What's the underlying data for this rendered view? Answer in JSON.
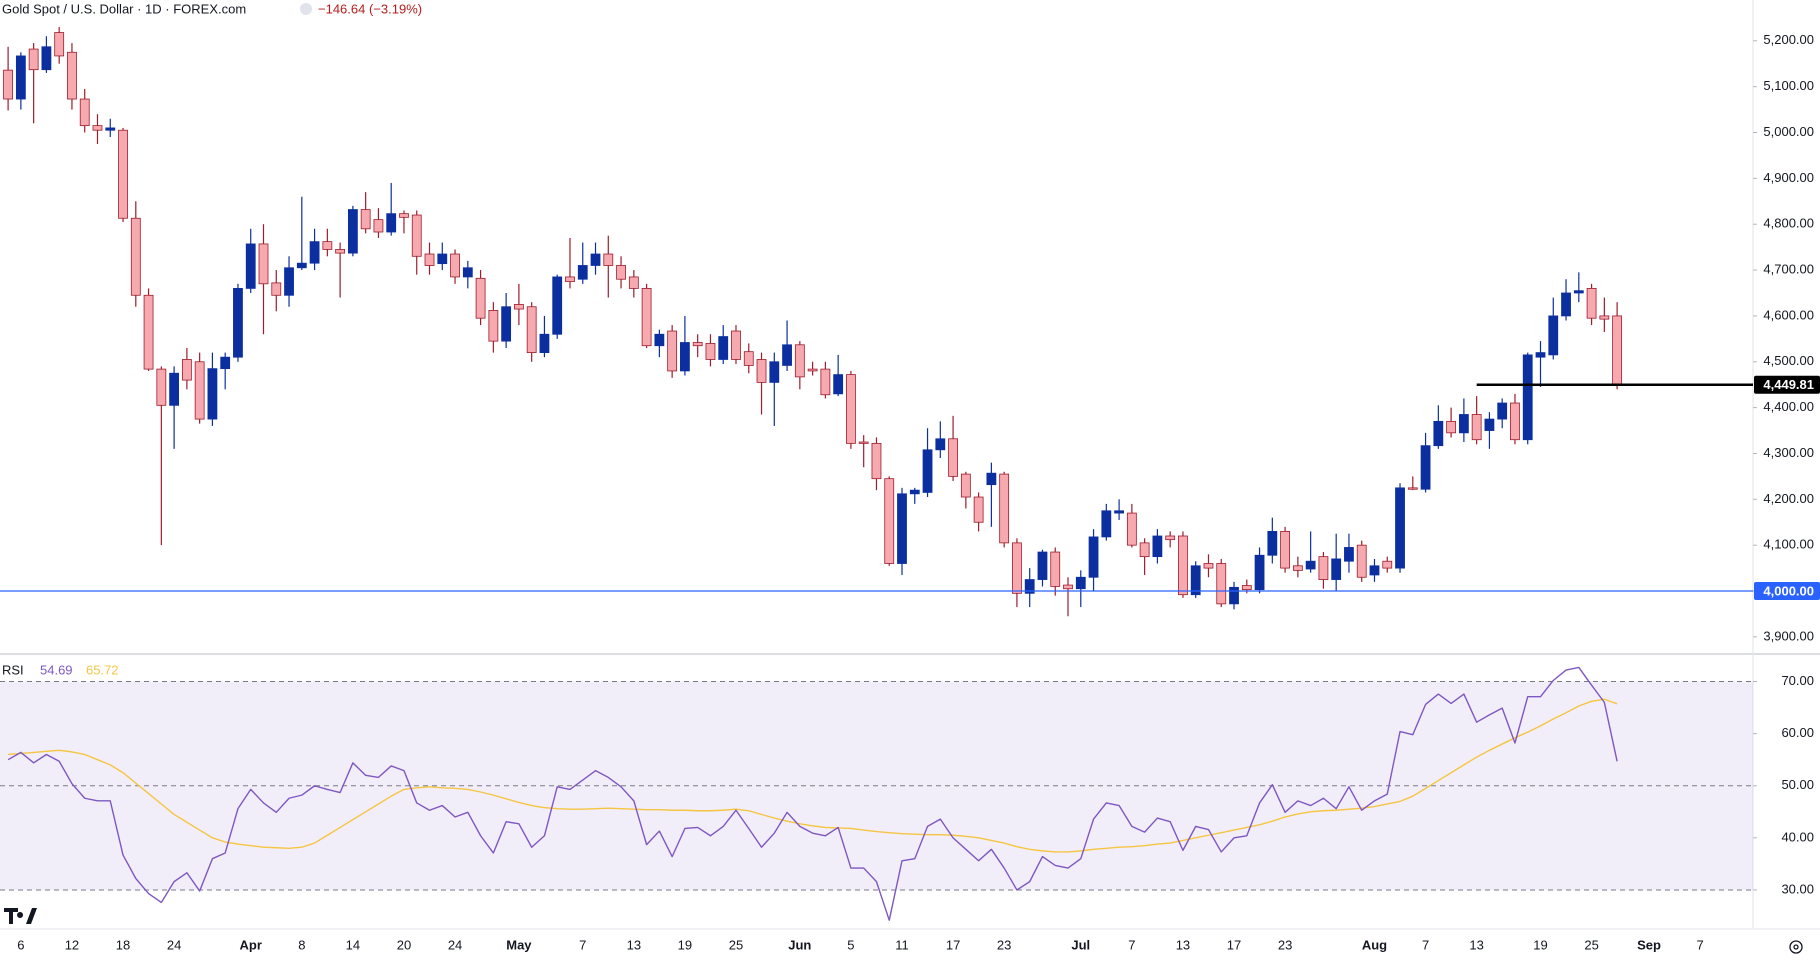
{
  "header": {
    "symbol": "Gold Spot / U.S. Dollar · 1D · FOREX.com",
    "change": "−146.64 (−3.19%)"
  },
  "chart_data": [
    {
      "type": "candlestick",
      "categories": [
        null,
        "6",
        null,
        null,
        null,
        "12",
        null,
        null,
        null,
        "18",
        null,
        null,
        null,
        "24",
        null,
        null,
        null,
        null,
        null,
        "Apr",
        null,
        null,
        null,
        "8",
        null,
        null,
        null,
        "14",
        null,
        null,
        null,
        "20",
        null,
        null,
        null,
        "24",
        null,
        null,
        null,
        null,
        "May",
        null,
        null,
        null,
        null,
        "7",
        null,
        null,
        null,
        "13",
        null,
        null,
        null,
        "19",
        null,
        null,
        null,
        "25",
        null,
        null,
        null,
        null,
        "Jun",
        null,
        null,
        null,
        "5",
        null,
        null,
        null,
        "11",
        null,
        null,
        null,
        "17",
        null,
        null,
        null,
        "23",
        null,
        null,
        null,
        null,
        null,
        "Jul",
        null,
        null,
        null,
        "7",
        null,
        null,
        null,
        "13",
        null,
        null,
        null,
        "17",
        null,
        null,
        null,
        "23",
        null,
        null,
        null,
        null,
        null,
        null,
        "Aug",
        null,
        null,
        null,
        "7",
        null,
        null,
        null,
        "13",
        null,
        null,
        null,
        null,
        "19",
        null,
        null,
        null,
        "25",
        null,
        null
      ],
      "future_categories": [
        "Sep",
        "7"
      ],
      "open": [
        5136,
        5073,
        5182,
        5137,
        5218,
        5175,
        5073,
        5015,
        5005,
        5005,
        4813,
        4645,
        4484,
        4405,
        4505,
        4500,
        4375,
        4485,
        4510,
        4660,
        4757,
        4672,
        4645,
        4705,
        4715,
        4762,
        4745,
        4737,
        4832,
        4810,
        4783,
        4823,
        4820,
        4735,
        4714,
        4735,
        4685,
        4682,
        4612,
        4545,
        4625,
        4620,
        4520,
        4560,
        4685,
        4680,
        4710,
        4735,
        4710,
        4685,
        4660,
        4535,
        4567,
        4480,
        4542,
        4540,
        4505,
        4567,
        4522,
        4505,
        4455,
        4492,
        4537,
        4484,
        4484,
        4430,
        4472,
        4325,
        4322,
        4245,
        4060,
        4212,
        4215,
        4308,
        4332,
        4255,
        4205,
        4232,
        4255,
        4105,
        3995,
        4025,
        4085,
        4013,
        4005,
        4030,
        4118,
        4170,
        4170,
        4105,
        4075,
        4120,
        4120,
        3992,
        4060,
        4060,
        3972,
        4012,
        4003,
        4078,
        4130,
        4055,
        4048,
        4075,
        4025,
        4065,
        4100,
        4035,
        4065,
        4050,
        4225,
        4222,
        4317,
        4370,
        4345,
        4385,
        4350,
        4375,
        4410,
        4330,
        4510,
        4515,
        4600,
        4650,
        4660,
        4600,
        4600
      ],
      "high": [
        5187,
        5175,
        5195,
        5210,
        5230,
        5195,
        5095,
        5040,
        5030,
        5010,
        4850,
        4660,
        4490,
        4490,
        4530,
        4520,
        4520,
        4520,
        4670,
        4790,
        4800,
        4700,
        4730,
        4860,
        4790,
        4790,
        4760,
        4840,
        4870,
        4835,
        4890,
        4830,
        4830,
        4760,
        4760,
        4745,
        4720,
        4700,
        4630,
        4650,
        4670,
        4630,
        4600,
        4690,
        4770,
        4760,
        4760,
        4775,
        4730,
        4700,
        4670,
        4570,
        4580,
        4600,
        4560,
        4560,
        4580,
        4580,
        4540,
        4520,
        4520,
        4590,
        4545,
        4500,
        4500,
        4515,
        4480,
        4340,
        4335,
        4250,
        4225,
        4225,
        4355,
        4370,
        4382,
        4260,
        4215,
        4280,
        4260,
        4115,
        4050,
        4090,
        4095,
        4030,
        4045,
        4135,
        4190,
        4200,
        4190,
        4115,
        4135,
        4130,
        4130,
        4065,
        4080,
        4070,
        4020,
        4025,
        4095,
        4160,
        4140,
        4075,
        4130,
        4085,
        4125,
        4125,
        4110,
        4070,
        4075,
        4235,
        4250,
        4345,
        4405,
        4400,
        4420,
        4425,
        4390,
        4420,
        4430,
        4520,
        4545,
        4640,
        4680,
        4695,
        4670,
        4640,
        4630
      ],
      "low": [
        5048,
        5050,
        5020,
        5130,
        5150,
        5050,
        5000,
        4975,
        4990,
        4805,
        4620,
        4480,
        4100,
        4310,
        4440,
        4365,
        4360,
        4440,
        4500,
        4650,
        4560,
        4610,
        4620,
        4700,
        4700,
        4730,
        4640,
        4730,
        4780,
        4770,
        4775,
        4780,
        4690,
        4690,
        4700,
        4670,
        4660,
        4580,
        4520,
        4530,
        4580,
        4500,
        4510,
        4550,
        4660,
        4670,
        4690,
        4640,
        4660,
        4640,
        4530,
        4510,
        4465,
        4470,
        4510,
        4490,
        4495,
        4495,
        4475,
        4385,
        4360,
        4480,
        4440,
        4470,
        4420,
        4425,
        4310,
        4270,
        4220,
        4055,
        4035,
        4190,
        4205,
        4290,
        4240,
        4180,
        4130,
        4140,
        4095,
        3965,
        3965,
        4010,
        3990,
        3945,
        3965,
        4000,
        4110,
        4155,
        4095,
        4035,
        4060,
        4095,
        3985,
        3985,
        4030,
        3965,
        3960,
        3995,
        3995,
        4060,
        4040,
        4030,
        4040,
        4005,
        4000,
        4040,
        4020,
        4020,
        4040,
        4040,
        4220,
        4215,
        4310,
        4335,
        4325,
        4320,
        4310,
        4355,
        4320,
        4320,
        4445,
        4505,
        4590,
        4630,
        4580,
        4565,
        4440
      ],
      "close": [
        5073,
        5167,
        5137,
        5187,
        5167,
        5073,
        5015,
        5005,
        5010,
        4813,
        4645,
        4484,
        4405,
        4475,
        4460,
        4375,
        4485,
        4510,
        4660,
        4757,
        4670,
        4645,
        4705,
        4715,
        4762,
        4745,
        4737,
        4832,
        4790,
        4783,
        4823,
        4815,
        4730,
        4710,
        4735,
        4685,
        4705,
        4595,
        4545,
        4620,
        4615,
        4520,
        4560,
        4685,
        4675,
        4710,
        4735,
        4710,
        4680,
        4660,
        4535,
        4560,
        4480,
        4542,
        4535,
        4505,
        4555,
        4505,
        4492,
        4455,
        4500,
        4537,
        4467,
        4480,
        4428,
        4472,
        4322,
        4322,
        4245,
        4060,
        4212,
        4220,
        4308,
        4332,
        4250,
        4205,
        4150,
        4257,
        4105,
        3995,
        4025,
        4085,
        4010,
        4005,
        4030,
        4118,
        4175,
        4175,
        4100,
        4075,
        4120,
        4112,
        3992,
        4055,
        4050,
        3972,
        4008,
        4003,
        4078,
        4130,
        4050,
        4045,
        4065,
        4025,
        4070,
        4095,
        4030,
        4055,
        4050,
        4225,
        4222,
        4317,
        4370,
        4345,
        4385,
        4330,
        4375,
        4410,
        4330,
        4515,
        4520,
        4600,
        4650,
        4655,
        4595,
        4593,
        4449.81
      ],
      "up_color": "#0c2fa0",
      "down_color": "#f7a9b0",
      "down_edge": "#9e1c2b",
      "ylim": [
        3867,
        5289
      ],
      "yticks": [
        {
          "value": 5200,
          "label": "5,200.00"
        },
        {
          "value": 5100,
          "label": "5,100.00"
        },
        {
          "value": 5000,
          "label": "5,000.00"
        },
        {
          "value": 4900,
          "label": "4,900.00"
        },
        {
          "value": 4800,
          "label": "4,800.00"
        },
        {
          "value": 4700,
          "label": "4,700.00"
        },
        {
          "value": 4600,
          "label": "4,600.00"
        },
        {
          "value": 4500,
          "label": "4,500.00"
        },
        {
          "value": 4400,
          "label": "4,400.00"
        },
        {
          "value": 4300,
          "label": "4,300.00"
        },
        {
          "value": 4200,
          "label": "4,200.00"
        },
        {
          "value": 4100,
          "label": "4,100.00"
        },
        {
          "value": 4000,
          "label": "4,000.00"
        },
        {
          "value": 3900,
          "label": "3,900.00"
        }
      ],
      "grid": false,
      "hlines": [
        {
          "value": 4000,
          "label": "4,000.00",
          "color": "#2962ff"
        },
        {
          "value": 4449.81,
          "label": "4,449.81",
          "color": "#000000",
          "from": 115
        }
      ]
    },
    {
      "type": "line",
      "title": "RSI",
      "series": [
        {
          "color": "#7e57c2",
          "values": [
            55,
            56.4,
            54.4,
            56,
            54.7,
            50.4,
            47.6,
            47.1,
            47.1,
            36.7,
            32.2,
            29.3,
            27.6,
            31.6,
            33.3,
            29.8,
            36,
            37.1,
            45.6,
            49.3,
            46.7,
            44.9,
            47.6,
            48.2,
            50,
            49.3,
            48.7,
            54.4,
            52,
            51.6,
            53.8,
            52.9,
            46.7,
            45.3,
            46.2,
            44,
            44.9,
            40.4,
            37.1,
            43.1,
            42.7,
            38.2,
            40.4,
            49.8,
            49.3,
            51.1,
            52.9,
            51.6,
            49.8,
            47.1,
            38.7,
            41.3,
            36.4,
            41.8,
            42,
            40.4,
            42.2,
            45.3,
            41.8,
            38.2,
            40.9,
            44.9,
            42.2,
            40.9,
            40.4,
            42,
            34.2,
            34.2,
            31.6,
            24.2,
            35.6,
            36,
            42.2,
            43.6,
            40,
            37.8,
            35.6,
            37.8,
            34.2,
            30,
            31.6,
            36.4,
            34.7,
            34.2,
            36,
            43.6,
            46.7,
            46.2,
            42.2,
            41.1,
            43.8,
            43.1,
            37.6,
            42.2,
            41.6,
            37.3,
            40,
            40.4,
            46.7,
            50.2,
            44.9,
            47.1,
            46.2,
            47.6,
            45.6,
            49.8,
            45.3,
            47.1,
            48.4,
            60.4,
            59.8,
            65.6,
            67.6,
            65.8,
            67.6,
            62.2,
            63.6,
            64.9,
            58.2,
            67.1,
            67.1,
            70.2,
            72.2,
            72.7,
            69.3,
            66,
            54.69
          ]
        },
        {
          "color": "#f5c542",
          "values": [
            56,
            56.2,
            56.4,
            56.6,
            56.8,
            56.5,
            56,
            55,
            54,
            52.5,
            50.5,
            48.5,
            46.5,
            44.5,
            43,
            41.5,
            40,
            39.2,
            38.8,
            38.5,
            38.2,
            38.1,
            38,
            38.2,
            39,
            40.5,
            42,
            43.5,
            45,
            46.5,
            48,
            49.3,
            49.6,
            49.8,
            49.6,
            49.5,
            49.3,
            48.8,
            48.2,
            47.5,
            46.8,
            46.2,
            45.8,
            45.6,
            45.5,
            45.5,
            45.6,
            45.7,
            45.6,
            45.5,
            45.4,
            45.4,
            45.3,
            45.3,
            45.2,
            45.2,
            45.3,
            45.5,
            45.2,
            44.5,
            43.8,
            43.2,
            42.7,
            42.3,
            42,
            41.9,
            41.8,
            41.5,
            41.2,
            41,
            40.8,
            40.7,
            40.6,
            40.6,
            40.5,
            40.3,
            40,
            39.5,
            39,
            38.3,
            37.8,
            37.5,
            37.3,
            37.3,
            37.5,
            37.8,
            38,
            38.2,
            38.3,
            38.5,
            38.8,
            39,
            39.5,
            40,
            40.5,
            41,
            41.5,
            42,
            42.5,
            43.2,
            44,
            44.6,
            45,
            45.2,
            45.3,
            45.5,
            45.7,
            46,
            46.5,
            47,
            48,
            49.5,
            51,
            52.5,
            54,
            55.5,
            56.8,
            58,
            59.2,
            60.3,
            61.5,
            62.8,
            64,
            65.3,
            66.2,
            66.6,
            65.72
          ]
        }
      ],
      "ylim": [
        22.7,
        74.9
      ],
      "yticks": [
        {
          "value": 70,
          "label": "70.00"
        },
        {
          "value": 60,
          "label": "60.00"
        },
        {
          "value": 50,
          "label": "50.00"
        },
        {
          "value": 40,
          "label": "40.00"
        },
        {
          "value": 30,
          "label": "30.00"
        }
      ],
      "band": [
        30,
        70
      ],
      "band_color": "#7e57c2",
      "dashed_levels": [
        70,
        50,
        30
      ]
    }
  ]
}
